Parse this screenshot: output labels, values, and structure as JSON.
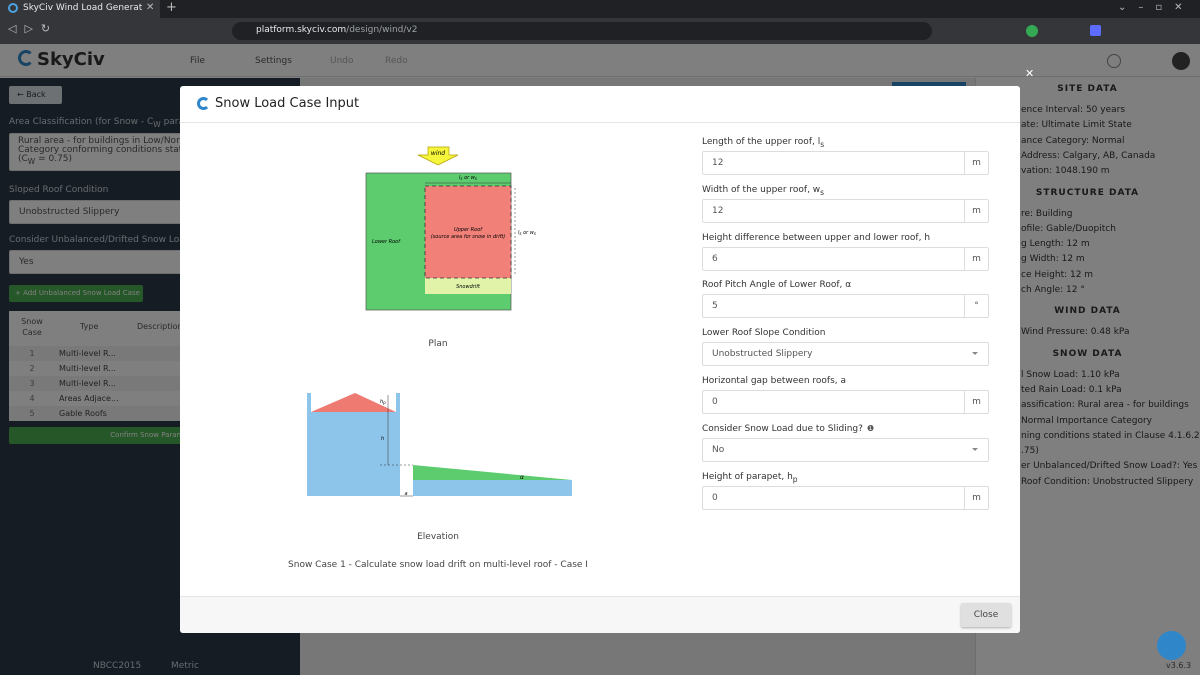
{
  "browser": {
    "tab_title": "SkyCiv Wind Load Generat",
    "url_host": "platform.skyciv.com",
    "url_path": "/design/wind/v2"
  },
  "app": {
    "logo": "SkyCiv",
    "menu": [
      "File",
      "Settings",
      "Undo",
      "Redo"
    ]
  },
  "left_panel": {
    "back": "Back",
    "area_label": [
      "Area Classification (for Snow - C",
      "W",
      " paramet"
    ],
    "area_value": [
      "Rural area - for buildings in Low/Norm",
      "Category conforming conditions stated",
      "(C",
      "W",
      " = 0.75)"
    ],
    "sloped_label": "Sloped Roof Condition",
    "sloped_value": "Unobstructed Slippery",
    "unbalanced_label": "Consider Unbalanced/Drifted Snow Load?",
    "unbalanced_value": "Yes",
    "add_button": "+ Add Unbalanced Snow Load Case",
    "table": {
      "headers": [
        [
          "Snow",
          "Case"
        ],
        "Type",
        "Description"
      ],
      "rows": [
        [
          "1",
          "Multi-level R..."
        ],
        [
          "2",
          "Multi-level R..."
        ],
        [
          "3",
          "Multi-level R..."
        ],
        [
          "4",
          "Areas Adjace..."
        ],
        [
          "5",
          "Gable Roofs"
        ]
      ]
    },
    "confirm_button": "Confirm Snow Parame"
  },
  "footer": {
    "code": "NBCC2015",
    "units": "Metric",
    "version": "v3.6.3"
  },
  "right_panel": {
    "sections": [
      {
        "title": "SITE DATA",
        "lines": [
          "ence Interval: 50 years",
          "ate: Ultimate Limit State",
          "ance Category: Normal",
          " Address: Calgary, AB, Canada",
          "vation: 1048.190 m"
        ]
      },
      {
        "title": "STRUCTURE DATA",
        "lines": [
          "re: Building",
          "ofile: Gable/Duopitch",
          "g Length: 12 m",
          "g Width: 12 m",
          "ce Height: 12 m",
          "ch Angle: 12 °"
        ]
      },
      {
        "title": "WIND DATA",
        "lines": [
          "Wind Pressure: 0.48 kPa"
        ]
      },
      {
        "title": "SNOW DATA",
        "lines": [
          "l Snow Load: 1.10 kPa",
          "ted Rain Load: 0.1 kPa",
          "assification: Rural area - for buildings",
          "Normal Importance Category",
          "ning conditions stated in Clause 4.1.6.2",
          ".75)",
          "er Unbalanced/Drifted Snow Load?: Yes",
          "Roof Condition: Unobstructed Slippery"
        ]
      }
    ]
  },
  "modal": {
    "title": "Snow Load Case Input",
    "plan": {
      "wind": "wind",
      "top_dim": [
        "l",
        "s",
        " or w",
        "s"
      ],
      "upper_roof": [
        "Upper Roof",
        "(source area for snow in drift)"
      ],
      "lower_roof": "Lower Roof",
      "snowdrift": "Snowdrift",
      "side_dim": [
        "l",
        "s",
        " or w",
        "s"
      ],
      "caption": "Plan"
    },
    "elevation": {
      "hp": [
        "h",
        "p"
      ],
      "h": "h",
      "a": "a",
      "alpha": "α",
      "caption": "Elevation"
    },
    "case_caption": "Snow Case 1 - Calculate snow load drift on multi-level roof - Case I",
    "fields": [
      {
        "label": [
          "Length of the upper roof, l",
          "s"
        ],
        "value": "12",
        "unit": "m"
      },
      {
        "label": [
          "Width of the upper roof, w",
          "s"
        ],
        "value": "12",
        "unit": "m"
      },
      {
        "label": [
          "Height difference between upper and lower roof, h"
        ],
        "value": "6",
        "unit": "m"
      },
      {
        "label": [
          "Roof Pitch Angle of Lower Roof, α"
        ],
        "value": "5",
        "unit": "°"
      },
      {
        "label": [
          "Lower Roof Slope Condition"
        ],
        "value": "Unobstructed Slippery"
      },
      {
        "label": [
          "Horizontal gap between roofs, a"
        ],
        "value": "0",
        "unit": "m"
      },
      {
        "label": [
          "Consider Snow Load due to Sliding?"
        ],
        "value": "No"
      },
      {
        "label": [
          "Height of parapet, h",
          "p"
        ],
        "value": "0",
        "unit": "m"
      }
    ],
    "close": "Close"
  }
}
